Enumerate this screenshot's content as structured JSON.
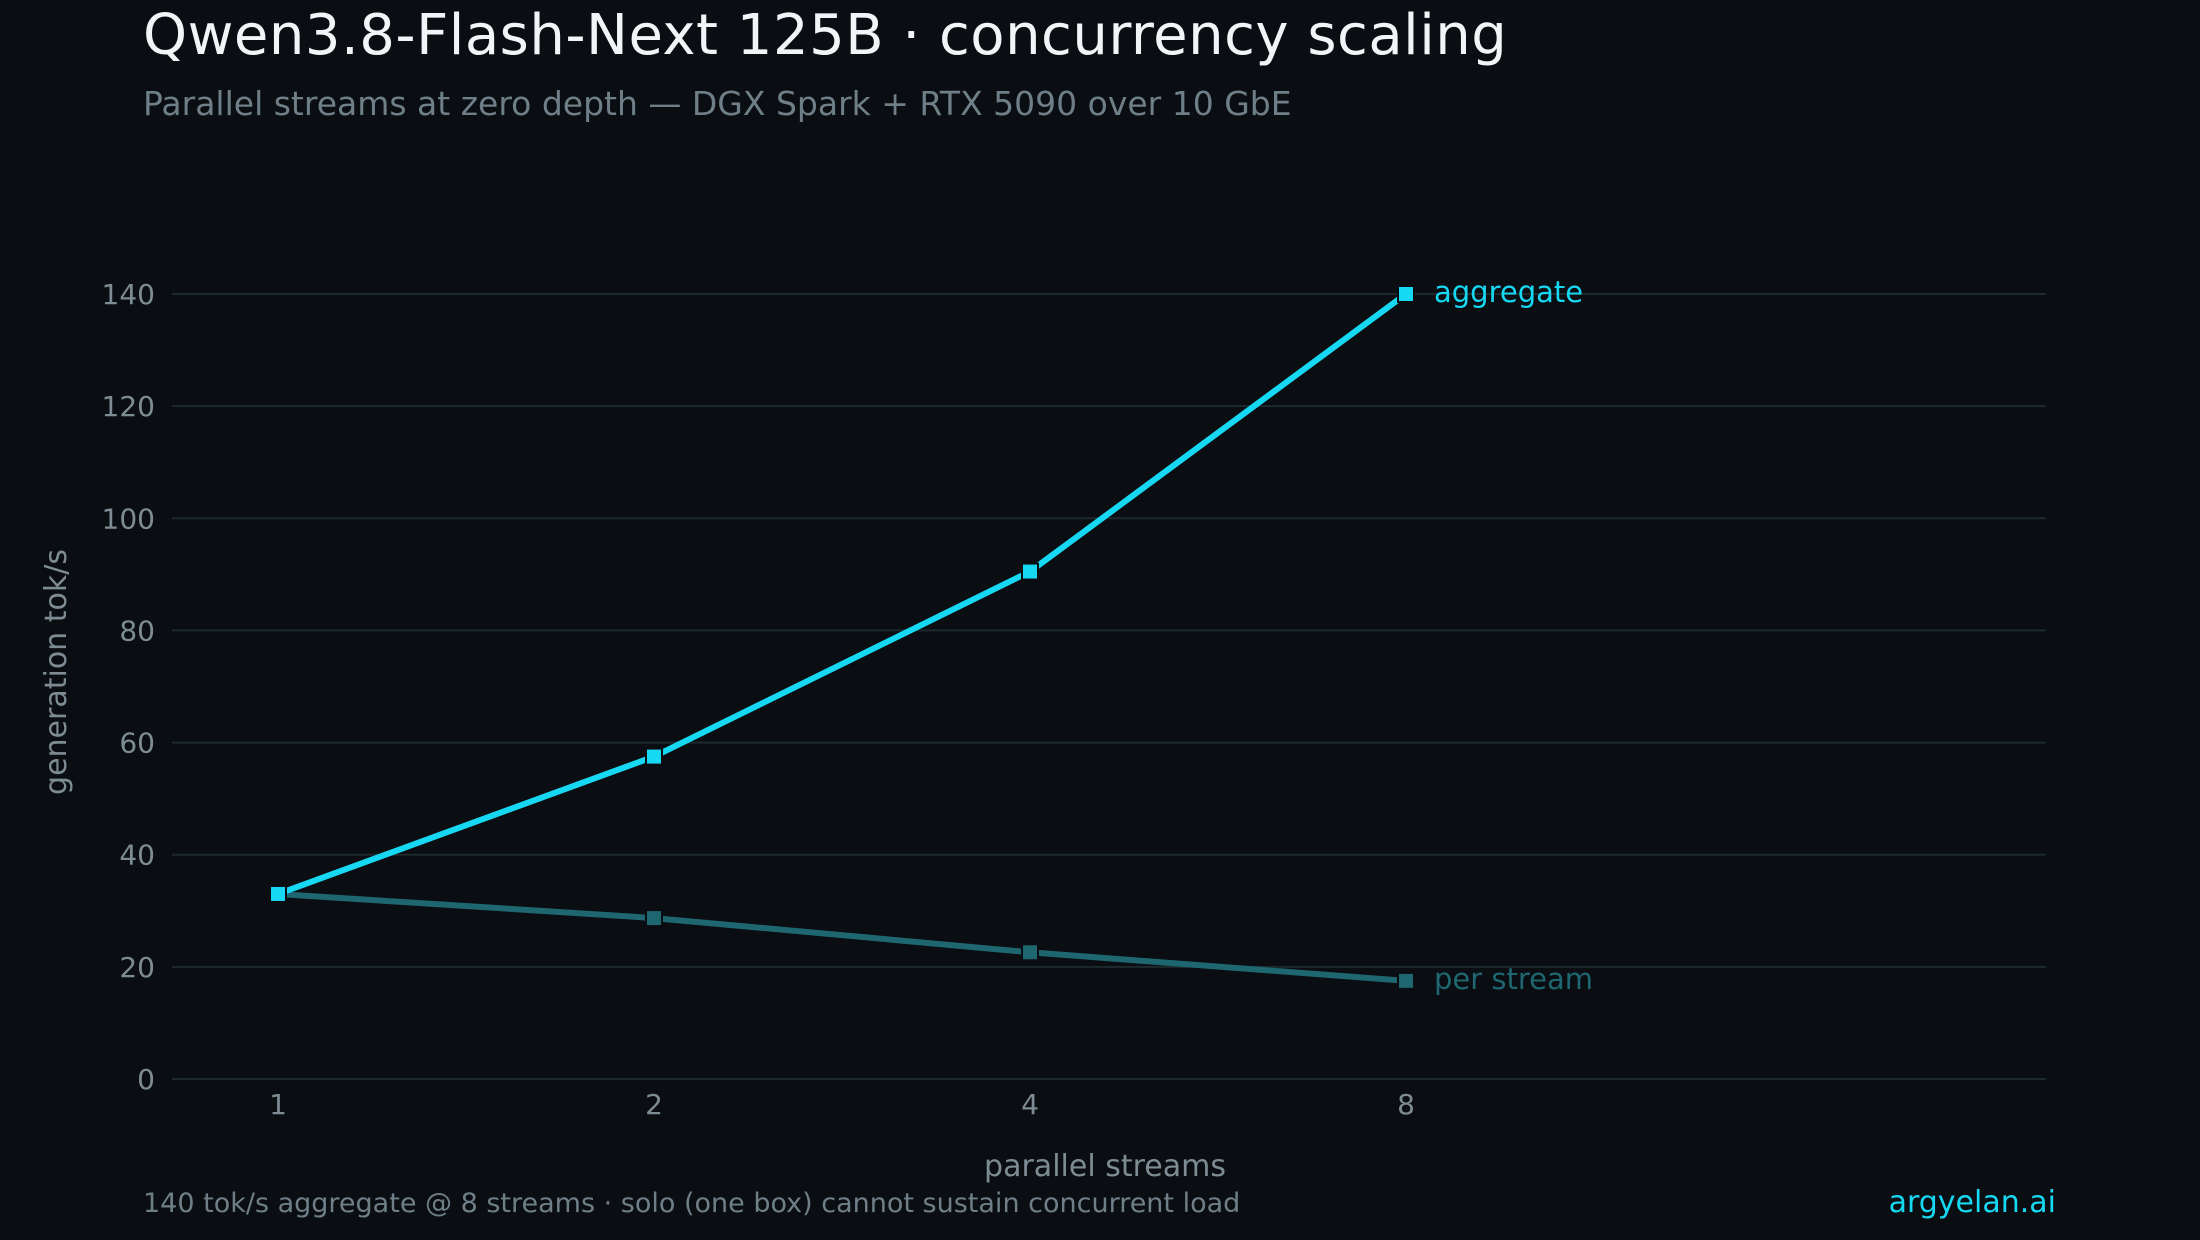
{
  "header": {
    "title": "Qwen3.8-Flash-Next 125B · concurrency scaling",
    "subtitle": "Parallel streams at zero depth — DGX Spark + RTX 5090 over 10 GbE"
  },
  "footer": {
    "note": "140 tok/s aggregate @ 8 streams · solo (one box) cannot sustain concurrent load",
    "brand": "argyelan.ai"
  },
  "colors": {
    "background": "#0a0d11",
    "grid": "#1c2a2e",
    "aggregate": "#17d8f2",
    "per_stream": "#1e6670",
    "brand": "#17d8f2"
  },
  "chart_data": {
    "type": "line",
    "categories": [
      "1",
      "2",
      "4",
      "8"
    ],
    "xlabel": "parallel streams",
    "ylabel": "generation  tok/s",
    "ylim": [
      0,
      140
    ],
    "yticks": [
      0,
      20,
      40,
      60,
      80,
      100,
      120,
      140
    ],
    "grid": true,
    "legend": "inline-right-of-last-point",
    "series": [
      {
        "name": "aggregate",
        "values": [
          33,
          57.5,
          90.5,
          140
        ],
        "color": "#17d8f2"
      },
      {
        "name": "per stream",
        "values": [
          33,
          28.7,
          22.6,
          17.5
        ],
        "color": "#1e6670"
      }
    ]
  }
}
